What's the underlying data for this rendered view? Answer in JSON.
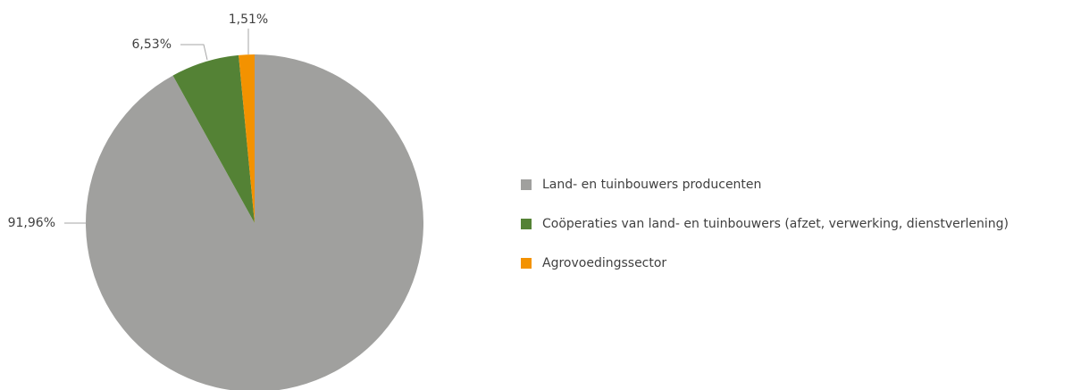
{
  "chart_data": {
    "type": "pie",
    "categories": [
      "Land- en tuinbouwers producenten",
      "Coöperaties van land- en tuinbouwers (afzet, verwerking, dienstverlening)",
      "Agrovoedingssector"
    ],
    "values": [
      91.96,
      6.53,
      1.51
    ],
    "value_labels": [
      "91,96%",
      "6,53%",
      "1,51%"
    ],
    "colors": [
      "#a0a09e",
      "#548235",
      "#f39200"
    ],
    "legend": "right"
  }
}
